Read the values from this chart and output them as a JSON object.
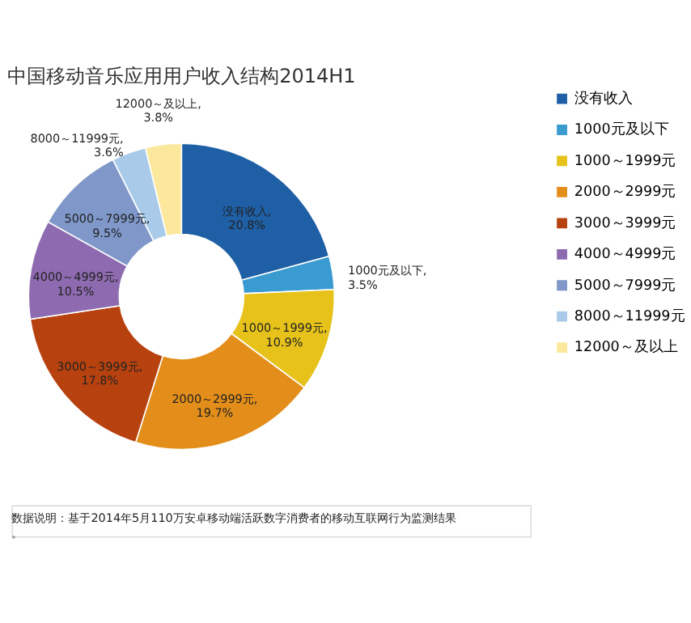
{
  "chart_data": {
    "type": "donut",
    "title": "中国移动音乐应用用户收入结构2014H1",
    "categories": [
      "没有收入",
      "1000元及以下",
      "1000～1999元",
      "2000～2999元",
      "3000～3999元",
      "4000～4999元",
      "5000～7999元",
      "8000～11999元",
      "12000～及以上"
    ],
    "values": [
      20.8,
      3.5,
      10.9,
      19.7,
      17.8,
      10.5,
      9.5,
      3.6,
      3.8
    ],
    "colors": [
      "#1f5fa6",
      "#3a9bd0",
      "#e6c21a",
      "#e38e1a",
      "#b8420f",
      "#8e6bb0",
      "#7f97c9",
      "#a9cbe9",
      "#fce89c"
    ],
    "value_labels": [
      "没有收入, 20.8%",
      "1000元及以下, 3.5%",
      "1000～1999元, 10.9%",
      "2000～2999元, 19.7%",
      "3000～3999元, 17.8%",
      "4000～4999元, 10.5%",
      "5000～7999元, 9.5%",
      "8000～11999元, 3.6%",
      "12000～及以上, 3.8%"
    ],
    "legend": "right",
    "annotations": [
      "数据说明：基于2014年5月110万安卓移动端活跃数字消费者的移动互联网行为监测结果。"
    ]
  }
}
